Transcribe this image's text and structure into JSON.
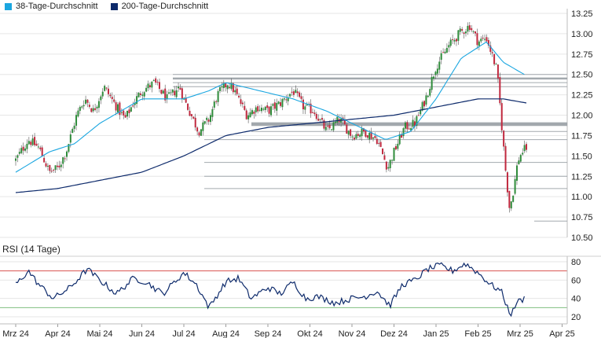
{
  "legend": [
    {
      "label": "38-Tage-Durchschnitt",
      "color": "#1aa6e0"
    },
    {
      "label": "200-Tage-Durchschnitt",
      "color": "#0d2a6b"
    }
  ],
  "colors": {
    "up": "#2e8b3a",
    "down": "#c0283e",
    "ma38": "#1aa6e0",
    "ma200": "#0d2a6b",
    "rsi_line": "#0d2a6b",
    "overbought_line": "#d9534f",
    "oversold_line": "#7fbf7f",
    "support_line": "#9aa0a6",
    "grid": "#e6e6e6"
  },
  "chart_data": [
    {
      "type": "candlestick",
      "title": "",
      "ylim": [
        10.5,
        13.25
      ],
      "yticks": [
        "13.25",
        "13.00",
        "12.75",
        "12.50",
        "12.25",
        "12.00",
        "11.75",
        "11.50",
        "11.25",
        "11.00",
        "10.75",
        "10.50"
      ],
      "ytick_values": [
        13.25,
        13.0,
        12.75,
        12.5,
        12.25,
        12.0,
        11.75,
        11.5,
        11.25,
        11.0,
        10.75,
        10.5
      ],
      "x_categories": [
        "Mrz 24",
        "Apr 24",
        "Mai 24",
        "Jun 24",
        "Jul 24",
        "Aug 24",
        "Sep 24",
        "Okt 24",
        "Nov 24",
        "Dez 24",
        "Jan 25",
        "Feb 25",
        "Mrz 25",
        "Apr 25"
      ],
      "close_anchors": [
        [
          0,
          11.45
        ],
        [
          0.3,
          11.7
        ],
        [
          0.55,
          11.6
        ],
        [
          0.8,
          11.3
        ],
        [
          1.0,
          11.35
        ],
        [
          1.2,
          11.55
        ],
        [
          1.45,
          12.0
        ],
        [
          1.65,
          12.2
        ],
        [
          1.85,
          12.05
        ],
        [
          2.1,
          12.35
        ],
        [
          2.4,
          12.1
        ],
        [
          2.6,
          11.95
        ],
        [
          2.8,
          12.15
        ],
        [
          3.0,
          12.3
        ],
        [
          3.3,
          12.4
        ],
        [
          3.6,
          12.2
        ],
        [
          3.9,
          12.35
        ],
        [
          4.0,
          12.2
        ],
        [
          4.35,
          11.8
        ],
        [
          4.6,
          11.95
        ],
        [
          4.8,
          12.25
        ],
        [
          5.05,
          12.4
        ],
        [
          5.2,
          12.3
        ],
        [
          5.5,
          12.0
        ],
        [
          5.75,
          12.1
        ],
        [
          6.0,
          12.05
        ],
        [
          6.3,
          12.15
        ],
        [
          6.6,
          12.3
        ],
        [
          6.85,
          12.1
        ],
        [
          7.1,
          12.05
        ],
        [
          7.4,
          11.8
        ],
        [
          7.7,
          11.95
        ],
        [
          8.0,
          11.75
        ],
        [
          8.3,
          11.8
        ],
        [
          8.6,
          11.7
        ],
        [
          8.85,
          11.35
        ],
        [
          9.0,
          11.55
        ],
        [
          9.25,
          11.85
        ],
        [
          9.5,
          11.9
        ],
        [
          9.75,
          12.2
        ],
        [
          10.0,
          12.6
        ],
        [
          10.3,
          12.85
        ],
        [
          10.55,
          13.0
        ],
        [
          10.8,
          13.1
        ],
        [
          11.0,
          12.9
        ],
        [
          11.2,
          12.95
        ],
        [
          11.45,
          12.55
        ],
        [
          11.65,
          11.35
        ],
        [
          11.75,
          10.85
        ],
        [
          11.85,
          11.1
        ],
        [
          11.95,
          11.45
        ],
        [
          12.05,
          11.55
        ],
        [
          12.15,
          11.6
        ]
      ],
      "ma38_anchors": [
        [
          0,
          11.3
        ],
        [
          0.8,
          11.55
        ],
        [
          1.4,
          11.65
        ],
        [
          2.0,
          11.9
        ],
        [
          3.0,
          12.2
        ],
        [
          4.0,
          12.2
        ],
        [
          4.6,
          12.3
        ],
        [
          5.0,
          12.4
        ],
        [
          5.8,
          12.3
        ],
        [
          6.6,
          12.2
        ],
        [
          7.4,
          12.05
        ],
        [
          8.2,
          11.85
        ],
        [
          8.8,
          11.7
        ],
        [
          9.4,
          11.8
        ],
        [
          10.0,
          12.2
        ],
        [
          10.6,
          12.7
        ],
        [
          11.2,
          12.9
        ],
        [
          11.6,
          12.65
        ],
        [
          12.1,
          12.5
        ]
      ],
      "ma200_anchors": [
        [
          0,
          11.05
        ],
        [
          1.0,
          11.1
        ],
        [
          2.0,
          11.2
        ],
        [
          3.0,
          11.3
        ],
        [
          4.0,
          11.5
        ],
        [
          5.0,
          11.75
        ],
        [
          6.0,
          11.85
        ],
        [
          7.0,
          11.9
        ],
        [
          8.0,
          11.95
        ],
        [
          9.0,
          12.0
        ],
        [
          10.0,
          12.1
        ],
        [
          11.0,
          12.2
        ],
        [
          11.6,
          12.2
        ],
        [
          12.15,
          12.15
        ]
      ],
      "support_levels": [
        12.5,
        12.45,
        12.4,
        12.35,
        11.9,
        11.88,
        11.8,
        11.7,
        11.42,
        11.25,
        11.1,
        10.7
      ]
    },
    {
      "type": "line",
      "title": "RSI (14 Tage)",
      "ylim": [
        10,
        90
      ],
      "yticks": [
        "80",
        "60",
        "40",
        "20"
      ],
      "ytick_values": [
        80,
        60,
        40,
        20
      ],
      "overbought": 70,
      "oversold": 30,
      "rsi_anchors": [
        [
          0,
          55
        ],
        [
          0.3,
          70
        ],
        [
          0.55,
          55
        ],
        [
          0.9,
          40
        ],
        [
          1.3,
          52
        ],
        [
          1.7,
          72
        ],
        [
          2.0,
          60
        ],
        [
          2.4,
          45
        ],
        [
          2.8,
          62
        ],
        [
          3.1,
          58
        ],
        [
          3.5,
          45
        ],
        [
          4.0,
          68
        ],
        [
          4.3,
          55
        ],
        [
          4.6,
          30
        ],
        [
          5.0,
          58
        ],
        [
          5.3,
          62
        ],
        [
          5.6,
          40
        ],
        [
          6.0,
          52
        ],
        [
          6.3,
          45
        ],
        [
          6.6,
          58
        ],
        [
          6.9,
          40
        ],
        [
          7.2,
          42
        ],
        [
          7.6,
          35
        ],
        [
          8.0,
          40
        ],
        [
          8.3,
          42
        ],
        [
          8.6,
          48
        ],
        [
          8.9,
          32
        ],
        [
          9.2,
          55
        ],
        [
          9.5,
          60
        ],
        [
          9.8,
          72
        ],
        [
          10.1,
          76
        ],
        [
          10.4,
          70
        ],
        [
          10.7,
          78
        ],
        [
          11.0,
          68
        ],
        [
          11.3,
          55
        ],
        [
          11.55,
          48
        ],
        [
          11.7,
          30
        ],
        [
          11.8,
          22
        ],
        [
          11.9,
          35
        ],
        [
          12.1,
          40
        ]
      ]
    }
  ]
}
